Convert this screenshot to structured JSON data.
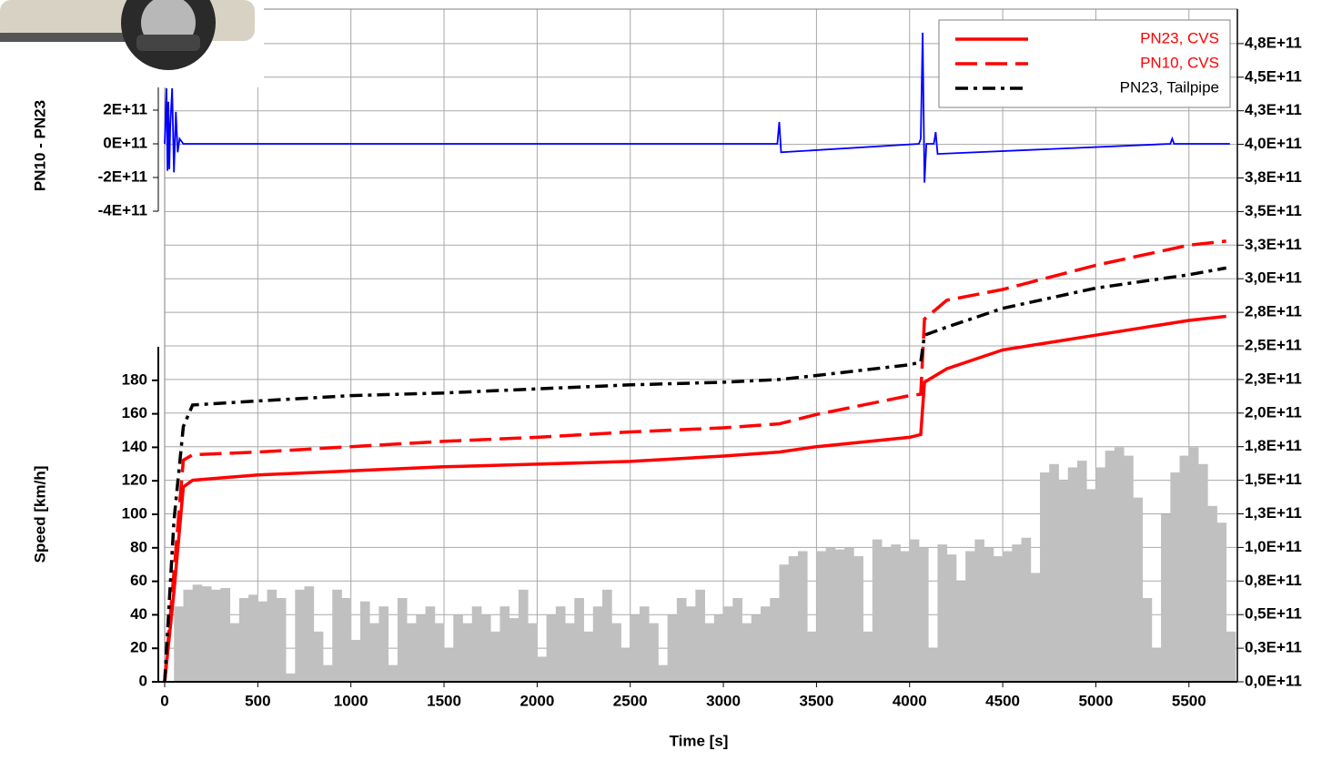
{
  "chart_data": {
    "type": "line",
    "xlabel": "Time [s]",
    "ylabel": "Speed [km/h]",
    "y3label": "PN10 - PN23",
    "grid": true,
    "legend": "upper right",
    "xlim": [
      0,
      5760
    ],
    "xticks": [
      0,
      500,
      1000,
      1500,
      2000,
      2500,
      3000,
      3500,
      4000,
      4500,
      5000,
      5500
    ],
    "ylim": [
      0,
      200
    ],
    "yticks": [
      0,
      20,
      40,
      60,
      80,
      100,
      120,
      140,
      160,
      180
    ],
    "y2lim": [
      0,
      500000000000.0
    ],
    "y2ticks": [
      {
        "value": 0,
        "label": "0,0E+11"
      },
      {
        "value": 25000000000.0,
        "label": "0,3E+11"
      },
      {
        "value": 50000000000.0,
        "label": "0,5E+11"
      },
      {
        "value": 75000000000.0,
        "label": "0,8E+11"
      },
      {
        "value": 100000000000.0,
        "label": "1,0E+11"
      },
      {
        "value": 125000000000.0,
        "label": "1,3E+11"
      },
      {
        "value": 150000000000.0,
        "label": "1,5E+11"
      },
      {
        "value": 175000000000.0,
        "label": "1,8E+11"
      },
      {
        "value": 200000000000.0,
        "label": "2,0E+11"
      },
      {
        "value": 225000000000.0,
        "label": "2,3E+11"
      },
      {
        "value": 250000000000.0,
        "label": "2,5E+11"
      },
      {
        "value": 275000000000.0,
        "label": "2,8E+11"
      },
      {
        "value": 300000000000.0,
        "label": "3,0E+11"
      },
      {
        "value": 325000000000.0,
        "label": "3,3E+11"
      },
      {
        "value": 350000000000.0,
        "label": "3,5E+11"
      },
      {
        "value": 375000000000.0,
        "label": "3,8E+11"
      },
      {
        "value": 400000000000.0,
        "label": "4,0E+11"
      },
      {
        "value": 425000000000.0,
        "label": "4,3E+11"
      },
      {
        "value": 450000000000.0,
        "label": "4,5E+11"
      },
      {
        "value": 475000000000.0,
        "label": "4,8E+11"
      }
    ],
    "y3lim": [
      -400000000000.0,
      800000000000.0
    ],
    "y3ticks": [
      {
        "value": -400000000000.0,
        "label": "-4E+11"
      },
      {
        "value": -200000000000.0,
        "label": "-2E+11"
      },
      {
        "value": 0,
        "label": "0E+11"
      },
      {
        "value": 200000000000.0,
        "label": "2E+11"
      }
    ],
    "x": [
      0,
      50,
      100,
      150,
      500,
      1000,
      1500,
      2000,
      2500,
      3000,
      3300,
      3500,
      4000,
      4060,
      4080,
      4200,
      4500,
      5000,
      5500,
      5700
    ],
    "series": [
      {
        "name": "PN23, CVS",
        "color": "#ff0000",
        "dash": "solid",
        "axis": "y2",
        "values": [
          0,
          67000000000.0,
          145000000000.0,
          150000000000.0,
          154000000000.0,
          157000000000.0,
          160000000000.0,
          162000000000.0,
          164000000000.0,
          168000000000.0,
          171000000000.0,
          175000000000.0,
          182000000000.0,
          184000000000.0,
          223000000000.0,
          233000000000.0,
          247000000000.0,
          258000000000.0,
          269000000000.0,
          272000000000.0
        ]
      },
      {
        "name": "PN10, CVS",
        "color": "#ff0000",
        "dash": "dashed",
        "axis": "y2",
        "values": [
          0,
          81000000000.0,
          165000000000.0,
          169000000000.0,
          171000000000.0,
          175000000000.0,
          179000000000.0,
          182000000000.0,
          186000000000.0,
          189000000000.0,
          192000000000.0,
          199000000000.0,
          213000000000.0,
          214000000000.0,
          270000000000.0,
          284000000000.0,
          292000000000.0,
          310000000000.0,
          325000000000.0,
          328000000000.0
        ]
      },
      {
        "name": "PN23, Tailpipe",
        "color": "#000000",
        "dash": "dashdot",
        "axis": "y2",
        "values": [
          0,
          120000000000.0,
          190000000000.0,
          206000000000.0,
          209000000000.0,
          213000000000.0,
          215000000000.0,
          218000000000.0,
          221000000000.0,
          223000000000.0,
          225000000000.0,
          228000000000.0,
          236000000000.0,
          238000000000.0,
          258000000000.0,
          264000000000.0,
          278000000000.0,
          293000000000.0,
          303000000000.0,
          308000000000.0
        ]
      }
    ],
    "speed": {
      "type": "bar",
      "color": "#c0c0c0",
      "x": [
        0,
        50,
        100,
        150,
        200,
        250,
        300,
        350,
        400,
        450,
        500,
        550,
        600,
        650,
        700,
        750,
        800,
        850,
        900,
        950,
        1000,
        1050,
        1100,
        1150,
        1200,
        1250,
        1300,
        1350,
        1400,
        1450,
        1500,
        1550,
        1600,
        1650,
        1700,
        1750,
        1800,
        1850,
        1900,
        1950,
        2000,
        2050,
        2100,
        2150,
        2200,
        2250,
        2300,
        2350,
        2400,
        2450,
        2500,
        2550,
        2600,
        2650,
        2700,
        2750,
        2800,
        2850,
        2900,
        2950,
        3000,
        3050,
        3100,
        3150,
        3200,
        3250,
        3300,
        3350,
        3400,
        3450,
        3500,
        3550,
        3600,
        3650,
        3700,
        3750,
        3800,
        3850,
        3900,
        3950,
        4000,
        4050,
        4100,
        4150,
        4200,
        4250,
        4300,
        4350,
        4400,
        4450,
        4500,
        4550,
        4600,
        4650,
        4700,
        4750,
        4800,
        4850,
        4900,
        4950,
        5000,
        5050,
        5100,
        5150,
        5200,
        5250,
        5300,
        5350,
        5400,
        5450,
        5500,
        5550,
        5600,
        5650,
        5700
      ],
      "values": [
        0,
        45,
        55,
        58,
        57,
        55,
        56,
        35,
        50,
        52,
        48,
        55,
        50,
        5,
        55,
        57,
        30,
        10,
        55,
        50,
        25,
        48,
        35,
        45,
        10,
        50,
        35,
        40,
        45,
        35,
        20,
        40,
        35,
        45,
        40,
        30,
        45,
        38,
        55,
        35,
        15,
        40,
        45,
        35,
        50,
        30,
        45,
        55,
        35,
        20,
        40,
        45,
        35,
        10,
        40,
        50,
        45,
        55,
        35,
        40,
        45,
        50,
        35,
        40,
        45,
        50,
        70,
        75,
        78,
        30,
        78,
        80,
        79,
        80,
        75,
        30,
        85,
        80,
        82,
        78,
        85,
        80,
        20,
        82,
        76,
        60,
        78,
        85,
        80,
        75,
        78,
        82,
        86,
        65,
        125,
        130,
        120,
        128,
        132,
        115,
        128,
        138,
        140,
        135,
        110,
        50,
        20,
        100,
        125,
        135,
        140,
        130,
        105,
        95,
        30
      ]
    },
    "difference": {
      "type": "line",
      "color": "#0000ff",
      "x": [
        0,
        10,
        15,
        20,
        25,
        30,
        40,
        50,
        60,
        70,
        80,
        100,
        200,
        3290,
        3300,
        3310,
        4050,
        4060,
        4070,
        4080,
        4090,
        4130,
        4140,
        4150,
        5400,
        5410,
        5420,
        5720
      ],
      "values": [
        0,
        330000000000.0,
        -160000000000.0,
        250000000000.0,
        -150000000000.0,
        100000000000.0,
        330000000000.0,
        -170000000000.0,
        190000000000.0,
        -50000000000.0,
        30000000000.0,
        0,
        0,
        0,
        130000000000.0,
        -50000000000.0,
        0,
        30000000000.0,
        660000000000.0,
        -230000000000.0,
        0,
        0,
        70000000000.0,
        -60000000000.0,
        0,
        30000000000.0,
        0,
        0
      ]
    }
  }
}
